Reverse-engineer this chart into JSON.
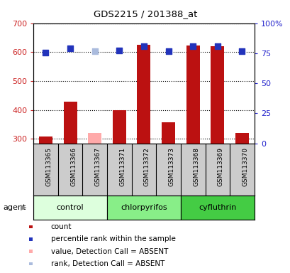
{
  "title": "GDS2215 / 201388_at",
  "samples": [
    "GSM113365",
    "GSM113366",
    "GSM113367",
    "GSM113371",
    "GSM113372",
    "GSM113373",
    "GSM113368",
    "GSM113369",
    "GSM113370"
  ],
  "groups": [
    {
      "name": "control",
      "indices": [
        0,
        1,
        2
      ]
    },
    {
      "name": "chlorpyrifos",
      "indices": [
        3,
        4,
        5
      ]
    },
    {
      "name": "cyfluthrin",
      "indices": [
        6,
        7,
        8
      ]
    }
  ],
  "group_colors": [
    "#ddffdd",
    "#88ee88",
    "#44cc44"
  ],
  "count_values": [
    308,
    428,
    null,
    400,
    625,
    358,
    622,
    621,
    320
  ],
  "count_absent": [
    null,
    null,
    322,
    null,
    null,
    null,
    null,
    null,
    null
  ],
  "rank_values": [
    75.5,
    79.0,
    null,
    77.5,
    81.0,
    77.0,
    80.8,
    81.0,
    76.5
  ],
  "rank_absent": [
    null,
    null,
    76.5,
    null,
    null,
    null,
    null,
    null,
    null
  ],
  "ylim_left": [
    285,
    700
  ],
  "ylim_right": [
    0,
    100
  ],
  "yticks_left": [
    300,
    400,
    500,
    600,
    700
  ],
  "yticks_right": [
    0,
    25,
    50,
    75,
    100
  ],
  "ytick_right_labels": [
    "0",
    "25",
    "50",
    "75",
    "100%"
  ],
  "grid_values": [
    300,
    400,
    500,
    600,
    700
  ],
  "bar_color": "#bb1111",
  "absent_bar_color": "#ffaaaa",
  "rank_dot_color": "#2233bb",
  "rank_absent_dot_color": "#aabbdd",
  "legend_items": [
    {
      "color": "#bb1111",
      "label": "count"
    },
    {
      "color": "#2233bb",
      "label": "percentile rank within the sample"
    },
    {
      "color": "#ffaaaa",
      "label": "value, Detection Call = ABSENT"
    },
    {
      "color": "#aabbdd",
      "label": "rank, Detection Call = ABSENT"
    }
  ],
  "left_tick_color": "#cc2222",
  "right_tick_color": "#2222cc",
  "sample_box_color": "#cccccc",
  "bar_width": 0.55
}
